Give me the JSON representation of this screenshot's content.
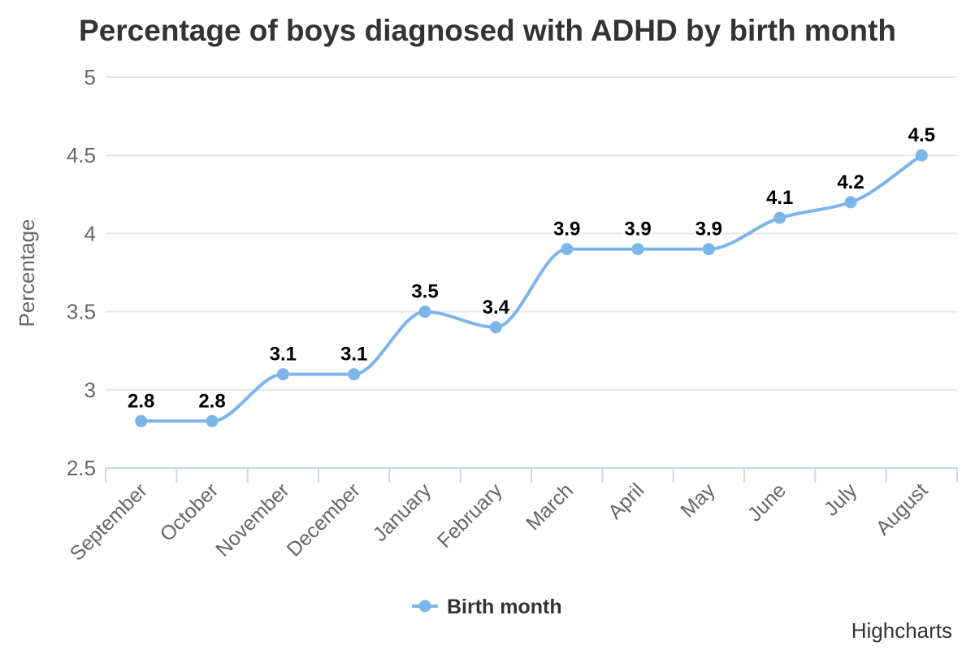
{
  "credits": "Highcharts",
  "chart_data": {
    "type": "line",
    "title": "Percentage of boys diagnosed with ADHD by birth month",
    "xlabel": "",
    "ylabel": "Percentage",
    "categories": [
      "September",
      "October",
      "November",
      "December",
      "January",
      "February",
      "March",
      "April",
      "May",
      "June",
      "July",
      "August"
    ],
    "series": [
      {
        "name": "Birth month",
        "values": [
          2.8,
          2.8,
          3.1,
          3.1,
          3.5,
          3.4,
          3.9,
          3.9,
          3.9,
          4.1,
          4.2,
          4.5
        ]
      }
    ],
    "data_labels": [
      "2.8",
      "2.8",
      "3.1",
      "3.1",
      "3.5",
      "3.4",
      "3.9",
      "3.9",
      "3.9",
      "4.1",
      "4.2",
      "4.5"
    ],
    "ylim": [
      2.5,
      5
    ],
    "ytick_step": 0.5,
    "ytick_labels": [
      "2.5",
      "3",
      "3.5",
      "4",
      "4.5",
      "5"
    ],
    "grid": true,
    "legend_position": "bottom",
    "marker": "circle",
    "colors": {
      "series": "#7cb5ec",
      "grid": "#e6e6e6",
      "axis_line": "#ccd6eb",
      "tick": "#ccd6eb",
      "axis_label": "#666666",
      "title": "#333333",
      "data_label": "#000000",
      "legend_label": "#333333",
      "background": "#ffffff"
    }
  }
}
